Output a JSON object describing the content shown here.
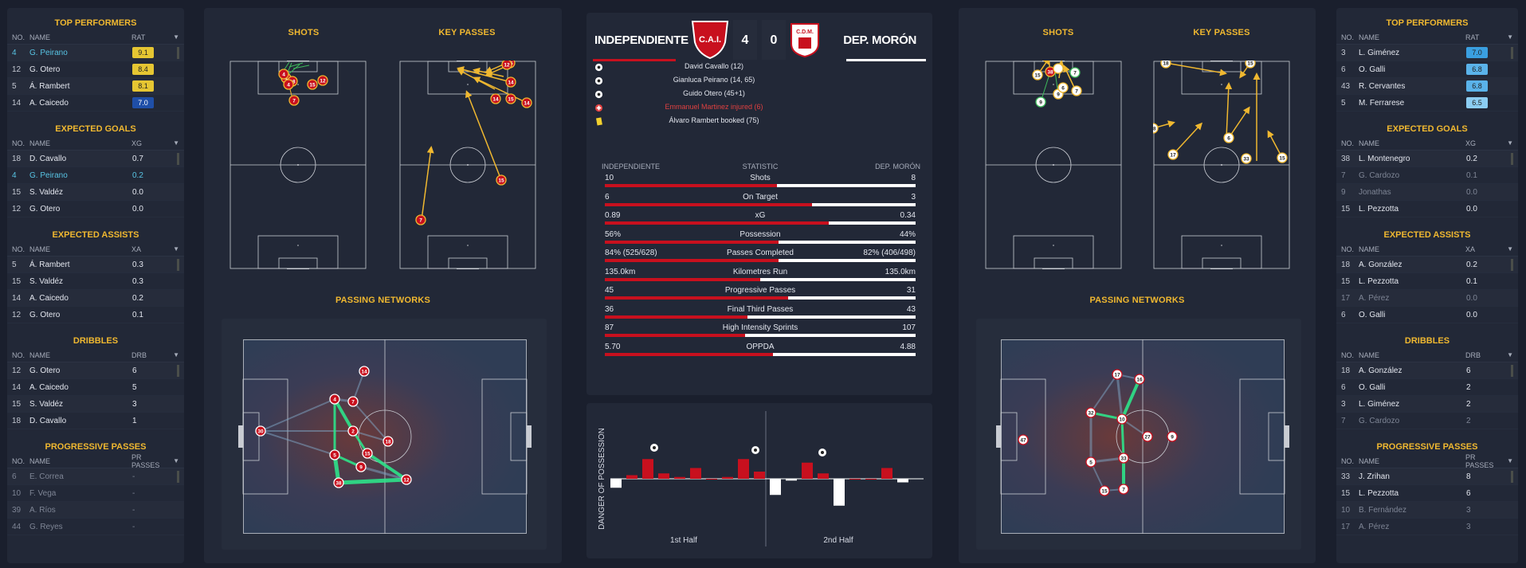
{
  "left_sidebar": {
    "sections": [
      {
        "title": "TOP PERFORMERS",
        "no_label": "NO.",
        "name_label": "NAME",
        "stat_label": "RAT",
        "rows": [
          {
            "no": "4",
            "name": "G. Peirano",
            "val": "9.1",
            "hl": true,
            "rc": "#e6c632"
          },
          {
            "no": "12",
            "name": "G. Otero",
            "val": "8.4",
            "rc": "#e6c632"
          },
          {
            "no": "5",
            "name": "Á. Rambert",
            "val": "8.1",
            "rc": "#e6c632"
          },
          {
            "no": "14",
            "name": "A. Caicedo",
            "val": "7.0",
            "rc": "#1f4fa8",
            "light": true
          }
        ]
      },
      {
        "title": "EXPECTED GOALS",
        "no_label": "NO.",
        "name_label": "NAME",
        "stat_label": "XG",
        "rows": [
          {
            "no": "18",
            "name": "D. Cavallo",
            "val": "0.7"
          },
          {
            "no": "4",
            "name": "G. Peirano",
            "val": "0.2",
            "hl": true
          },
          {
            "no": "15",
            "name": "S. Valdéz",
            "val": "0.0"
          },
          {
            "no": "12",
            "name": "G. Otero",
            "val": "0.0"
          }
        ]
      },
      {
        "title": "EXPECTED ASSISTS",
        "no_label": "NO.",
        "name_label": "NAME",
        "stat_label": "XA",
        "rows": [
          {
            "no": "5",
            "name": "Á. Rambert",
            "val": "0.3"
          },
          {
            "no": "15",
            "name": "S. Valdéz",
            "val": "0.3"
          },
          {
            "no": "14",
            "name": "A. Caicedo",
            "val": "0.2"
          },
          {
            "no": "12",
            "name": "G. Otero",
            "val": "0.1"
          }
        ]
      },
      {
        "title": "DRIBBLES",
        "no_label": "NO.",
        "name_label": "NAME",
        "stat_label": "DRB",
        "rows": [
          {
            "no": "12",
            "name": "G. Otero",
            "val": "6"
          },
          {
            "no": "14",
            "name": "A. Caicedo",
            "val": "5"
          },
          {
            "no": "15",
            "name": "S. Valdéz",
            "val": "3"
          },
          {
            "no": "18",
            "name": "D. Cavallo",
            "val": "1"
          }
        ]
      },
      {
        "title": "PROGRESSIVE PASSES",
        "no_label": "NO.",
        "name_label": "NAME",
        "stat_label": "PR PASSES",
        "rows": [
          {
            "no": "6",
            "name": "E. Correa",
            "val": "-",
            "dim": true
          },
          {
            "no": "10",
            "name": "F. Vega",
            "val": "-",
            "dim": true
          },
          {
            "no": "39",
            "name": "A. Ríos",
            "val": "-",
            "dim": true
          },
          {
            "no": "44",
            "name": "G. Reyes",
            "val": "-",
            "dim": true
          }
        ]
      }
    ]
  },
  "right_sidebar": {
    "sections": [
      {
        "title": "TOP PERFORMERS",
        "no_label": "NO.",
        "name_label": "NAME",
        "stat_label": "RAT",
        "rows": [
          {
            "no": "3",
            "name": "L. Giménez",
            "val": "7.0",
            "rc": "#3a9fe0"
          },
          {
            "no": "6",
            "name": "O. Galli",
            "val": "6.8",
            "rc": "#5ab3ea"
          },
          {
            "no": "43",
            "name": "R. Cervantes",
            "val": "6.8",
            "rc": "#5ab3ea"
          },
          {
            "no": "5",
            "name": "M. Ferrarese",
            "val": "6.5",
            "rc": "#8ccdf2"
          }
        ]
      },
      {
        "title": "EXPECTED GOALS",
        "no_label": "NO.",
        "name_label": "NAME",
        "stat_label": "XG",
        "rows": [
          {
            "no": "38",
            "name": "L. Montenegro",
            "val": "0.2"
          },
          {
            "no": "7",
            "name": "G. Cardozo",
            "val": "0.1",
            "dim": true
          },
          {
            "no": "9",
            "name": "Jonathas",
            "val": "0.0",
            "dim": true
          },
          {
            "no": "15",
            "name": "L. Pezzotta",
            "val": "0.0"
          }
        ]
      },
      {
        "title": "EXPECTED ASSISTS",
        "no_label": "NO.",
        "name_label": "NAME",
        "stat_label": "XA",
        "rows": [
          {
            "no": "18",
            "name": "A. González",
            "val": "0.2"
          },
          {
            "no": "15",
            "name": "L. Pezzotta",
            "val": "0.1"
          },
          {
            "no": "17",
            "name": "A. Pérez",
            "val": "0.0",
            "dim": true
          },
          {
            "no": "6",
            "name": "O. Galli",
            "val": "0.0"
          }
        ]
      },
      {
        "title": "DRIBBLES",
        "no_label": "NO.",
        "name_label": "NAME",
        "stat_label": "DRB",
        "rows": [
          {
            "no": "18",
            "name": "A. González",
            "val": "6"
          },
          {
            "no": "6",
            "name": "O. Galli",
            "val": "2"
          },
          {
            "no": "3",
            "name": "L. Giménez",
            "val": "2"
          },
          {
            "no": "7",
            "name": "G. Cardozo",
            "val": "2",
            "dim": true
          }
        ]
      },
      {
        "title": "PROGRESSIVE PASSES",
        "no_label": "NO.",
        "name_label": "NAME",
        "stat_label": "PR PASSES",
        "rows": [
          {
            "no": "33",
            "name": "J. Zrihan",
            "val": "8"
          },
          {
            "no": "15",
            "name": "L. Pezzotta",
            "val": "6"
          },
          {
            "no": "10",
            "name": "B. Fernández",
            "val": "3",
            "dim": true
          },
          {
            "no": "17",
            "name": "A. Pérez",
            "val": "3",
            "dim": true
          }
        ]
      }
    ]
  },
  "match": {
    "home_team": "INDEPENDIENTE",
    "away_team": "DEP. MORÓN",
    "home_score": "4",
    "away_score": "0",
    "home_badge": "C.A.I.",
    "away_badge": "C.D.M.",
    "events": [
      {
        "type": "goal",
        "text": "David Cavallo (12)"
      },
      {
        "type": "goal",
        "text": "Gianluca Peirano (14, 65)"
      },
      {
        "type": "goal",
        "text": "Guido Otero (45+1)"
      },
      {
        "type": "injury",
        "text": "Emmanuel Martinez injured (6)",
        "color": "#e04040"
      },
      {
        "type": "booking",
        "text": "Álvaro Rambert booked (75)"
      }
    ]
  },
  "stats": {
    "home_header": "INDEPENDIENTE",
    "stat_header": "STATISTIC",
    "away_header": "DEP. MORÓN",
    "rows": [
      {
        "name": "Shots",
        "home": "10",
        "away": "8",
        "share": 0.555
      },
      {
        "name": "On Target",
        "home": "6",
        "away": "3",
        "share": 0.667
      },
      {
        "name": "xG",
        "home": "0.89",
        "away": "0.34",
        "share": 0.72
      },
      {
        "name": "Possession",
        "home": "56%",
        "away": "44%",
        "share": 0.56
      },
      {
        "name": "Passes Completed",
        "home": "84% (525/628)",
        "away": "82% (406/498)",
        "share": 0.56
      },
      {
        "name": "Kilometres Run",
        "home": "135.0km",
        "away": "135.0km",
        "share": 0.5
      },
      {
        "name": "Progressive Passes",
        "home": "45",
        "away": "31",
        "share": 0.59
      },
      {
        "name": "Final Third Passes",
        "home": "36",
        "away": "43",
        "share": 0.46
      },
      {
        "name": "High Intensity Sprints",
        "home": "87",
        "away": "107",
        "share": 0.45
      },
      {
        "name": "OPPDA",
        "home": "5.70",
        "away": "4.88",
        "share": 0.54
      }
    ]
  },
  "left_panel": {
    "shots_title": "SHOTS",
    "key_passes_title": "KEY PASSES",
    "passing_title": "PASSING NETWORKS"
  },
  "right_panel": {
    "shots_title": "SHOTS",
    "key_passes_title": "KEY PASSES",
    "passing_title": "PASSING NETWORKS"
  },
  "danger_chart": {
    "ylabel": "DANGER OF POSSESSION",
    "first_half_label": "1st Half",
    "second_half_label": "2nd Half",
    "bars": [
      -0.25,
      0.1,
      0.55,
      0.15,
      0.05,
      0.3,
      0.0,
      0.05,
      0.55,
      0.2,
      -0.45,
      -0.05,
      0.45,
      0.15,
      -0.75,
      0.0,
      0.0,
      0.3,
      -0.1
    ],
    "home_color": "#c8101e",
    "away_color": "#ffffff"
  },
  "colors": {
    "accent": "#f0b830",
    "home": "#c8101e",
    "away": "#ffffff",
    "highlight": "#58c4e4"
  }
}
